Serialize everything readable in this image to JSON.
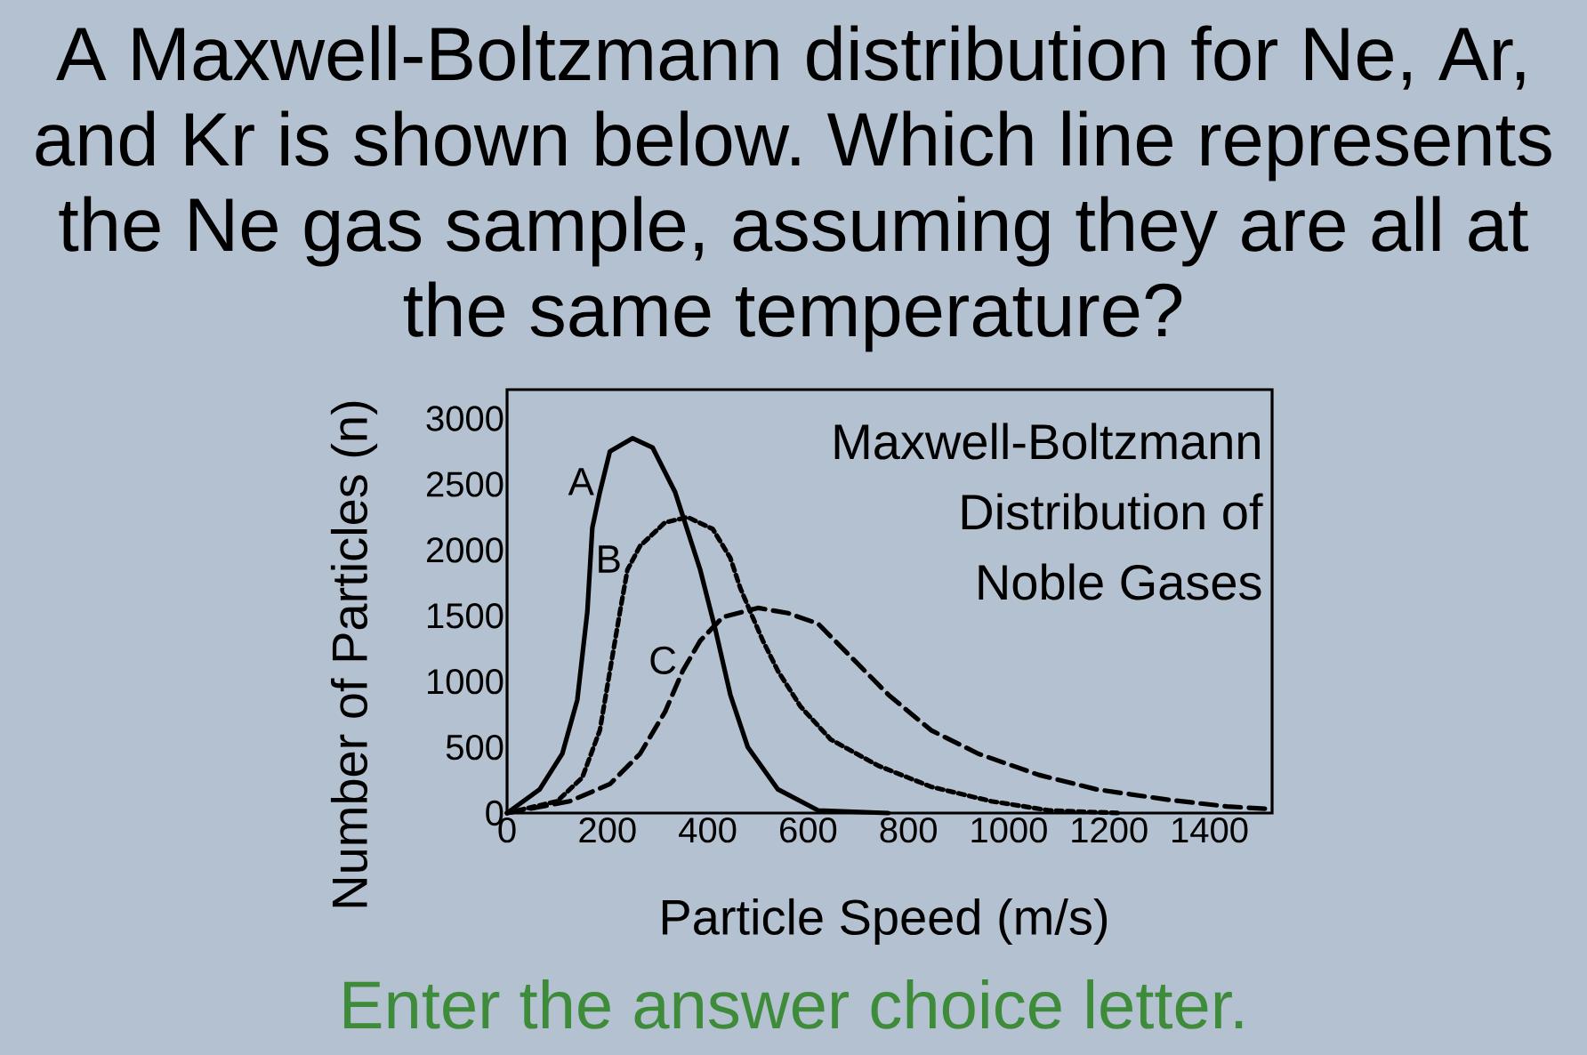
{
  "chart_data": {
    "type": "line",
    "title": "A Maxwell-Boltzmann distribution for Ne, Ar, and Kr is shown below. Which line represents the Ne gas sample, assuming they are all at the same temperature?",
    "subtitle": "Maxwell-Boltzmann Distribution of Noble Gases",
    "xlabel": "Particle Speed (m/s)",
    "ylabel": "Number of Particles (n)",
    "xlim": [
      0,
      1525
    ],
    "ylim": [
      0,
      3220
    ],
    "xticks": [
      0,
      200,
      400,
      600,
      800,
      1000,
      1200,
      1400
    ],
    "yticks": [
      0,
      500,
      1000,
      1500,
      2000,
      2500,
      3000
    ],
    "series": [
      {
        "color": "#000000",
        "line_style": "solid",
        "x": [
          0,
          65,
          110,
          140,
          160,
          170,
          185,
          205,
          250,
          290,
          335,
          385,
          415,
          445,
          480,
          540,
          620,
          760
        ],
        "values": [
          0,
          180,
          450,
          860,
          1530,
          2170,
          2440,
          2750,
          2850,
          2780,
          2440,
          1850,
          1400,
          900,
          500,
          180,
          20,
          0
        ]
      },
      {
        "color": "#000000",
        "line_style": "dotted",
        "x": [
          0,
          100,
          150,
          185,
          205,
          225,
          240,
          265,
          315,
          360,
          410,
          445,
          465,
          485,
          510,
          540,
          585,
          645,
          740,
          845,
          965,
          1080,
          1220
        ],
        "values": [
          0,
          90,
          270,
          630,
          1080,
          1530,
          1850,
          2030,
          2210,
          2250,
          2160,
          1940,
          1710,
          1530,
          1310,
          1080,
          810,
          560,
          360,
          200,
          90,
          20,
          0
        ]
      },
      {
        "color": "#000000",
        "line_style": "dashed",
        "x": [
          0,
          125,
          205,
          265,
          315,
          350,
          385,
          430,
          500,
          560,
          620,
          690,
          760,
          845,
          940,
          1060,
          1175,
          1320,
          1435,
          1525
        ],
        "values": [
          0,
          90,
          220,
          450,
          770,
          1080,
          1310,
          1490,
          1560,
          1520,
          1440,
          1170,
          900,
          630,
          450,
          290,
          180,
          100,
          50,
          30
        ]
      }
    ],
    "annotations": [
      {
        "text": "A",
        "x": 185,
        "y": 2440
      },
      {
        "text": "B",
        "x": 240,
        "y": 1850
      },
      {
        "text": "C",
        "x": 350,
        "y": 1080
      },
      "Enter the answer choice letter."
    ]
  }
}
